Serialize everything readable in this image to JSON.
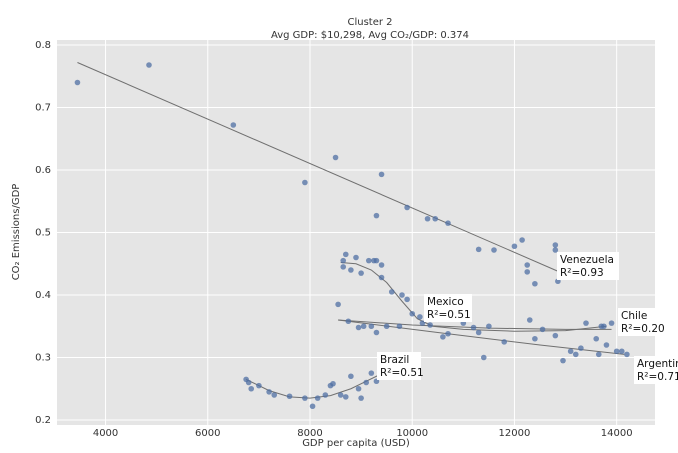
{
  "chart_data": {
    "type": "scatter",
    "title": "Cluster 2",
    "subtitle": "Avg GDP: $10,298, Avg CO₂/GDP: 0.374",
    "x_label": "GDP per capita (USD)",
    "y_label": "CO₂ Emissions/GDP",
    "xlim": [
      3050,
      14750
    ],
    "ylim": [
      0.192,
      0.808
    ],
    "xticks": [
      4000,
      6000,
      8000,
      10000,
      12000,
      14000
    ],
    "yticks": [
      0.2,
      0.3,
      0.4,
      0.5,
      0.6,
      0.7,
      0.8
    ],
    "grid": true,
    "point_color": "#4f6fa3",
    "line_color": "#707070",
    "x": [
      3450,
      4850,
      6500,
      7900,
      8500,
      9300,
      9400,
      9900,
      10300,
      10450,
      10700,
      11300,
      11600,
      12000,
      12150,
      12250,
      12250,
      12400,
      12800,
      12800,
      12850,
      8550,
      8650,
      8700,
      8650,
      8800,
      8900,
      9000,
      9150,
      9250,
      9300,
      9400,
      9400,
      9600,
      9800,
      9900,
      10000,
      10150,
      10200,
      10350,
      9200,
      8950,
      9300,
      9750,
      8750,
      9500,
      10700,
      11000,
      11200,
      11300,
      11400,
      11500,
      12300,
      12400,
      12800,
      12950,
      13100,
      13200,
      13300,
      13400,
      13600,
      13650,
      13700,
      13750,
      13800,
      14000,
      14100,
      14200,
      13900,
      11800,
      12550,
      10600,
      6750,
      6800,
      6850,
      7000,
      7200,
      7300,
      7600,
      7900,
      8050,
      8150,
      8300,
      8400,
      8450,
      8600,
      8700,
      8800,
      8950,
      9000,
      9100,
      9200,
      9300,
      9050
    ],
    "y": [
      0.74,
      0.768,
      0.672,
      0.58,
      0.62,
      0.527,
      0.593,
      0.54,
      0.522,
      0.522,
      0.515,
      0.473,
      0.472,
      0.478,
      0.488,
      0.448,
      0.437,
      0.418,
      0.48,
      0.472,
      0.422,
      0.385,
      0.455,
      0.465,
      0.445,
      0.44,
      0.46,
      0.435,
      0.455,
      0.455,
      0.455,
      0.448,
      0.428,
      0.405,
      0.4,
      0.393,
      0.37,
      0.365,
      0.355,
      0.352,
      0.35,
      0.348,
      0.34,
      0.35,
      0.358,
      0.35,
      0.338,
      0.355,
      0.348,
      0.34,
      0.3,
      0.35,
      0.36,
      0.33,
      0.335,
      0.295,
      0.31,
      0.305,
      0.315,
      0.355,
      0.33,
      0.305,
      0.35,
      0.35,
      0.32,
      0.31,
      0.31,
      0.305,
      0.355,
      0.325,
      0.345,
      0.333,
      0.265,
      0.26,
      0.25,
      0.255,
      0.245,
      0.24,
      0.238,
      0.235,
      0.222,
      0.235,
      0.24,
      0.255,
      0.258,
      0.24,
      0.237,
      0.27,
      0.25,
      0.235,
      0.26,
      0.275,
      0.262,
      0.35
    ],
    "fits": [
      {
        "label": "Venezuela",
        "r2_label": "R²=0.93",
        "x": [
          3450,
          12850
        ],
        "y": [
          0.772,
          0.438
        ]
      },
      {
        "label": "Mexico",
        "r2_label": "R²=0.51",
        "x": [
          8600,
          8900,
          9200,
          9500,
          9800,
          10100,
          10400,
          11000,
          12000,
          13000,
          13800
        ],
        "y": [
          0.452,
          0.45,
          0.44,
          0.42,
          0.39,
          0.362,
          0.35,
          0.345,
          0.342,
          0.343,
          0.35
        ]
      },
      {
        "label": "Chile",
        "r2_label": "R²=0.20",
        "x": [
          8550,
          10000,
          11500,
          13000,
          13900
        ],
        "y": [
          0.36,
          0.352,
          0.347,
          0.345,
          0.345
        ]
      },
      {
        "label": "Argentina",
        "r2_label": "R²=0.71",
        "x": [
          8550,
          10500,
          12500,
          14150
        ],
        "y": [
          0.36,
          0.34,
          0.32,
          0.305
        ]
      },
      {
        "label": "Brazil",
        "r2_label": "R²=0.51",
        "x": [
          6750,
          7200,
          7600,
          8000,
          8400,
          8800,
          9350
        ],
        "y": [
          0.265,
          0.247,
          0.237,
          0.235,
          0.239,
          0.25,
          0.272
        ]
      }
    ]
  }
}
